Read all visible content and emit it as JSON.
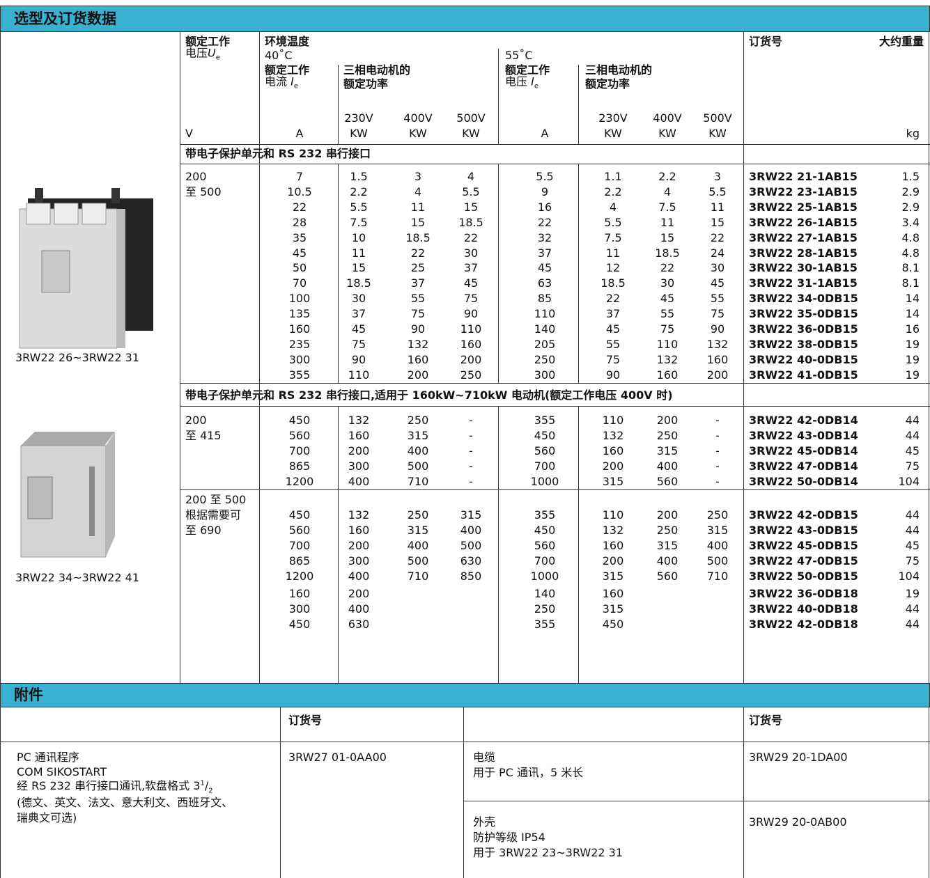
{
  "header": {
    "title": "选型及订货数据"
  },
  "columns": {
    "voltage": {
      "line1": "额定工作",
      "line2": "电压",
      "symbol": "U",
      "sub": "e"
    },
    "ambient": "环境温度",
    "t40": "40˚C",
    "t55": "55˚C",
    "current40": {
      "line1": "额定工作",
      "line2": "电流 ",
      "symbol": "I",
      "sub": "e"
    },
    "power40": [
      "三相电动机的",
      "额定功率"
    ],
    "current55": {
      "line1": "额定工作",
      "line2": "电压 ",
      "symbol": "I",
      "sub": "e"
    },
    "power55": [
      "三相电动机的",
      "额定功率"
    ],
    "voltages40": [
      "230V",
      "400V",
      "500V"
    ],
    "voltages55": [
      "230V",
      "400V",
      "500V"
    ],
    "order": "订货号",
    "weight": "大约重量",
    "units": [
      "V",
      "A",
      "KW",
      "KW",
      "KW",
      "A",
      "KW",
      "KW",
      "KW",
      "kg"
    ]
  },
  "sections": [
    {
      "title": "带电子保护单元和 RS 232 串行接口",
      "groups": [
        {
          "voltage": [
            "200",
            "至 500"
          ],
          "rows": [
            [
              "7",
              "1.5",
              "3",
              "4",
              "5.5",
              "1.1",
              "2.2",
              "3",
              "3RW22 21-1AB15",
              "1.5"
            ],
            [
              "10.5",
              "2.2",
              "4",
              "5.5",
              "9",
              "2.2",
              "4",
              "5.5",
              "3RW22 23-1AB15",
              "2.9"
            ],
            [
              "22",
              "5.5",
              "11",
              "15",
              "16",
              "4",
              "7.5",
              "11",
              "3RW22 25-1AB15",
              "2.9"
            ],
            [
              "28",
              "7.5",
              "15",
              "18.5",
              "22",
              "5.5",
              "11",
              "15",
              "3RW22 26-1AB15",
              "3.4"
            ],
            [
              "35",
              "10",
              "18.5",
              "22",
              "32",
              "7.5",
              "15",
              "22",
              "3RW22 27-1AB15",
              "4.8"
            ],
            [
              "45",
              "11",
              "22",
              "30",
              "37",
              "11",
              "18.5",
              "24",
              "3RW22 28-1AB15",
              "4.8"
            ],
            [
              "50",
              "15",
              "25",
              "37",
              "45",
              "12",
              "22",
              "30",
              "3RW22 30-1AB15",
              "8.1"
            ],
            [
              "70",
              "18.5",
              "37",
              "45",
              "63",
              "18.5",
              "30",
              "45",
              "3RW22 31-1AB15",
              "8.1"
            ],
            [
              "100",
              "30",
              "55",
              "75",
              "85",
              "22",
              "45",
              "55",
              "3RW22 34-0DB15",
              "14"
            ],
            [
              "135",
              "37",
              "75",
              "90",
              "110",
              "37",
              "55",
              "75",
              "3RW22 35-0DB15",
              "14"
            ],
            [
              "160",
              "45",
              "90",
              "110",
              "140",
              "45",
              "75",
              "90",
              "3RW22 36-0DB15",
              "16"
            ],
            [
              "235",
              "75",
              "132",
              "160",
              "205",
              "55",
              "110",
              "132",
              "3RW22 38-0DB15",
              "19"
            ],
            [
              "300",
              "90",
              "160",
              "200",
              "250",
              "75",
              "132",
              "160",
              "3RW22 40-0DB15",
              "19"
            ],
            [
              "355",
              "110",
              "200",
              "250",
              "300",
              "90",
              "160",
              "200",
              "3RW22 41-0DB15",
              "19"
            ]
          ]
        }
      ]
    },
    {
      "title": "带电子保护单元和 RS 232 串行接口,适用于 160kW~710kW 电动机(额定工作电压 400V 时)",
      "groups": [
        {
          "voltage": [
            "200",
            "至 415"
          ],
          "rows": [
            [
              "450",
              "132",
              "250",
              "-",
              "355",
              "110",
              "200",
              "-",
              "3RW22 42-0DB14",
              "44"
            ],
            [
              "560",
              "160",
              "315",
              "-",
              "450",
              "132",
              "250",
              "-",
              "3RW22 43-0DB14",
              "44"
            ],
            [
              "700",
              "200",
              "400",
              "-",
              "560",
              "160",
              "315",
              "-",
              "3RW22 45-0DB14",
              "45"
            ],
            [
              "865",
              "300",
              "500",
              "-",
              "700",
              "200",
              "400",
              "-",
              "3RW22 47-0DB14",
              "75"
            ],
            [
              "1200",
              "400",
              "710",
              "-",
              "1000",
              "315",
              "560",
              "-",
              "3RW22 50-0DB14",
              "104"
            ]
          ]
        },
        {
          "voltage": [
            "200 至 500",
            "根据需要可",
            "至 690"
          ],
          "rows": [
            [
              "450",
              "132",
              "250",
              "315",
              "355",
              "110",
              "200",
              "250",
              "3RW22 42-0DB15",
              "44"
            ],
            [
              "560",
              "160",
              "315",
              "400",
              "450",
              "132",
              "250",
              "315",
              "3RW22 43-0DB15",
              "44"
            ],
            [
              "700",
              "200",
              "400",
              "500",
              "560",
              "160",
              "315",
              "400",
              "3RW22 45-0DB15",
              "45"
            ],
            [
              "865",
              "300",
              "500",
              "630",
              "700",
              "200",
              "400",
              "500",
              "3RW22 47-0DB15",
              "75"
            ],
            [
              "1200",
              "400",
              "710",
              "850",
              "1000",
              "315",
              "560",
              "710",
              "3RW22 50-0DB15",
              "104"
            ],
            [
              "160",
              "200",
              null,
              null,
              "140",
              "160",
              null,
              null,
              "3RW22 36-0DB18",
              "19"
            ],
            [
              "300",
              "400",
              null,
              null,
              "250",
              "315",
              null,
              null,
              "3RW22 40-0DB18",
              "44"
            ],
            [
              "450",
              "630",
              null,
              null,
              "355",
              "450",
              null,
              null,
              "3RW22 42-0DB18",
              "44"
            ]
          ]
        }
      ]
    }
  ],
  "images": [
    {
      "caption": "3RW22 26~3RW22 31"
    },
    {
      "caption": "3RW22 34~3RW22 41"
    }
  ],
  "accessories": {
    "title": "附件",
    "header": [
      "订货号",
      "订货号"
    ],
    "left": {
      "lines": [
        "PC 通讯程序",
        "COM SIKOSTART"
      ],
      "line3": {
        "text": "经 RS 232 串行接口通讯,软盘格式 3",
        "sup": "1",
        "slash": "/",
        "sub": "2"
      },
      "lines2": [
        "(德文、英文、法文、意大利文、西班牙文、",
        "瑞典文可选)"
      ],
      "order": "3RW27 01-0AA00"
    },
    "right": [
      {
        "lines": [
          "电缆",
          "用于 PC 通讯，5 米长"
        ],
        "order": "3RW29 20-1DA00"
      },
      {
        "lines": [
          "外壳",
          "防护等级 IP54",
          "用于 3RW22 23~3RW22 31"
        ],
        "order": "3RW29 20-0AB00"
      }
    ]
  }
}
